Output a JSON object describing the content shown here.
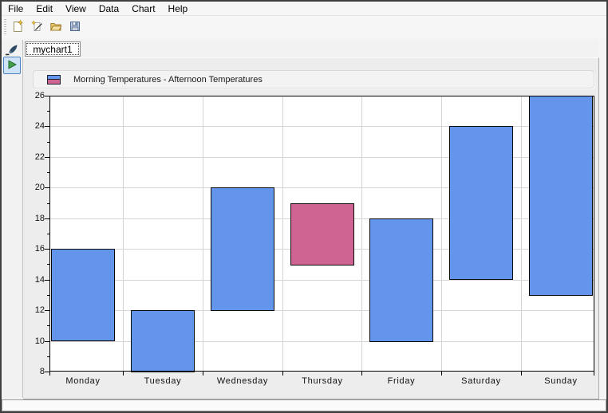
{
  "menu": {
    "items": [
      {
        "label": "File"
      },
      {
        "label": "Edit"
      },
      {
        "label": "View"
      },
      {
        "label": "Data"
      },
      {
        "label": "Chart"
      },
      {
        "label": "Help"
      }
    ]
  },
  "toolbar": {
    "buttons": [
      {
        "name": "new-chart-button",
        "icon": "new-file-icon"
      },
      {
        "name": "chart-wizard-button",
        "icon": "wand-icon"
      },
      {
        "name": "open-button",
        "icon": "open-folder-icon"
      },
      {
        "name": "save-button",
        "icon": "save-icon"
      }
    ]
  },
  "side_toolbar": {
    "tools": [
      {
        "name": "style-brush-tool",
        "icon": "brush-icon",
        "selected": false
      },
      {
        "name": "run-tool",
        "icon": "play-icon",
        "selected": true
      }
    ]
  },
  "tabs": [
    {
      "label": "mychart1",
      "active": true
    }
  ],
  "legend": {
    "label": "Morning Temperatures - Afternoon Temperatures",
    "swatch_top_color": "#6495ED",
    "swatch_bottom_color": "#CF6493"
  },
  "status_bar": {
    "text": ""
  },
  "chart_data": {
    "type": "bar",
    "subtype": "floating-range-bar",
    "title": "",
    "xlabel": "",
    "ylabel": "",
    "categories": [
      "Monday",
      "Tuesday",
      "Wednesday",
      "Thursday",
      "Friday",
      "Saturday",
      "Sunday"
    ],
    "series": [
      {
        "name": "Morning Temperatures",
        "values": [
          10,
          8,
          12,
          15,
          10,
          14,
          13
        ]
      },
      {
        "name": "Afternoon Temperatures",
        "values": [
          16,
          12,
          20,
          19,
          18,
          24,
          26
        ]
      }
    ],
    "bars": [
      {
        "category": "Monday",
        "low": 10,
        "high": 16,
        "color": "#6495ED",
        "highlighted": false
      },
      {
        "category": "Tuesday",
        "low": 8,
        "high": 12,
        "color": "#6495ED",
        "highlighted": false
      },
      {
        "category": "Wednesday",
        "low": 12,
        "high": 20,
        "color": "#6495ED",
        "highlighted": false
      },
      {
        "category": "Thursday",
        "low": 15,
        "high": 19,
        "color": "#CF6493",
        "highlighted": true
      },
      {
        "category": "Friday",
        "low": 10,
        "high": 18,
        "color": "#6495ED",
        "highlighted": false
      },
      {
        "category": "Saturday",
        "low": 14,
        "high": 24,
        "color": "#6495ED",
        "highlighted": false
      },
      {
        "category": "Sunday",
        "low": 13,
        "high": 26,
        "color": "#6495ED",
        "highlighted": false
      }
    ],
    "ylim": [
      8,
      26
    ],
    "ytick_major": 2,
    "ytick_minor": 1,
    "grid": true,
    "legend_position": "top",
    "grid_color": "#D5D5D5",
    "axis_color": "#000000",
    "plot_background": "#FFFFFF",
    "chart_background": "#EDEDED",
    "bar_border_color": "#0A0A0A"
  }
}
